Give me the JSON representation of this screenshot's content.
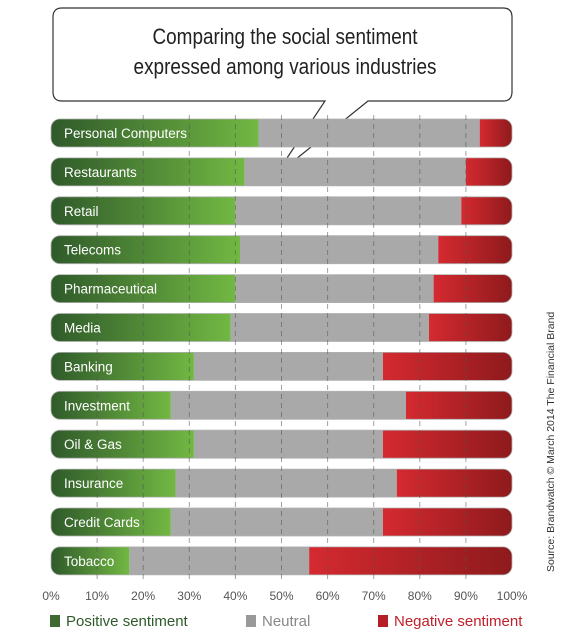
{
  "chart_data": {
    "type": "bar",
    "orientation": "horizontal",
    "stacked": true,
    "title": "Comparing the social sentiment expressed among various industries",
    "title_lines": [
      "Comparing the social sentiment",
      "expressed among various industries"
    ],
    "categories": [
      "Personal Computers",
      "Restaurants",
      "Retail",
      "Telecoms",
      "Pharmaceutical",
      "Media",
      "Banking",
      "Investment",
      "Oil & Gas",
      "Insurance",
      "Credit Cards",
      "Tobacco"
    ],
    "series": [
      {
        "name": "Positive sentiment",
        "color": "#6aae3e",
        "values": [
          45,
          42,
          40,
          41,
          40,
          39,
          31,
          26,
          31,
          27,
          26,
          17
        ]
      },
      {
        "name": "Neutral",
        "color": "#a9a9a9",
        "values": [
          48,
          48,
          49,
          43,
          43,
          43,
          41,
          51,
          41,
          48,
          46,
          39
        ]
      },
      {
        "name": "Negative sentiment",
        "color": "#c7242c",
        "values": [
          7,
          10,
          11,
          16,
          17,
          18,
          28,
          23,
          28,
          25,
          28,
          44
        ]
      }
    ],
    "x_ticks": [
      "0%",
      "10%",
      "20%",
      "30%",
      "40%",
      "50%",
      "60%",
      "70%",
      "80%",
      "90%",
      "100%"
    ],
    "xlim": [
      0,
      100
    ],
    "grid": "vertical dashed",
    "legend_position": "bottom"
  },
  "source": "Source: Brandwatch © March 2014 The Financial Brand",
  "colors": {
    "positive_dark": "#2f5a2a",
    "positive_light": "#72b843",
    "neutral": "#a9a9a9",
    "negative_light": "#d42a30",
    "negative_dark": "#8e1a1c",
    "bar_outline": "#b0b0b0"
  }
}
